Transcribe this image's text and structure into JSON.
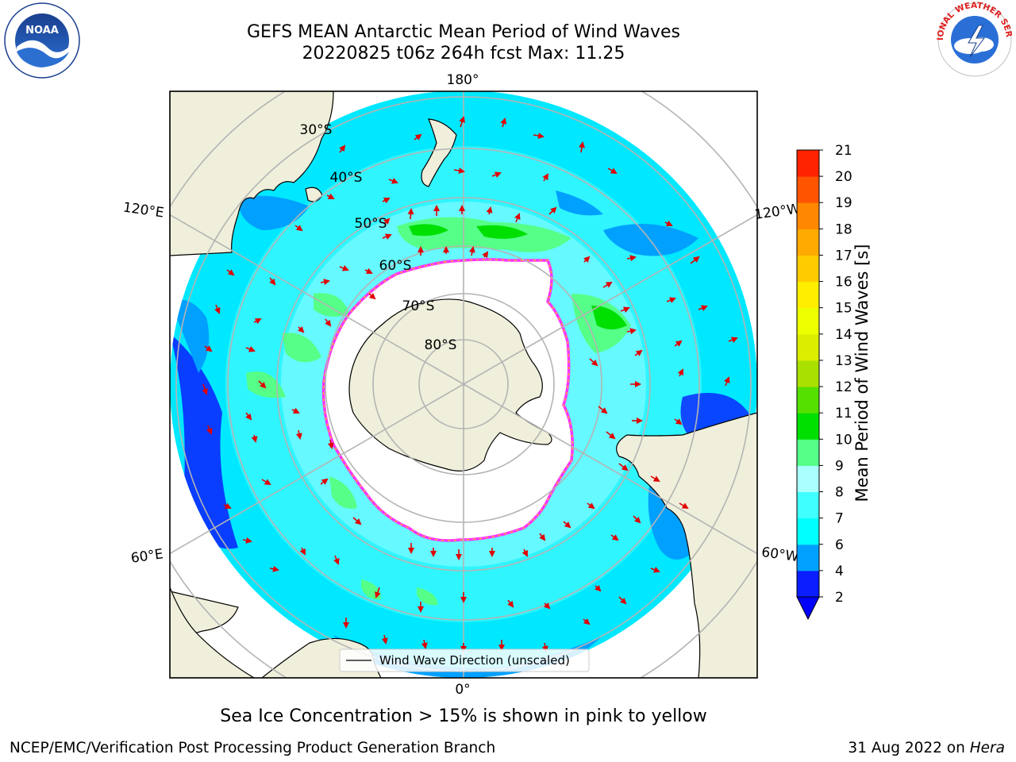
{
  "title": {
    "line1": "GEFS MEAN Antarctic Mean Period of Wind Waves",
    "line2": "20220825 t06z 264h fcst   Max: 11.25"
  },
  "map": {
    "projection": "south-polar-stereographic",
    "longitude_labels": [
      "180°",
      "120°E",
      "120°W",
      "60°E",
      "60°W",
      "0°"
    ],
    "latitude_labels": [
      "30°S",
      "40°S",
      "50°S",
      "60°S",
      "70°S",
      "80°S"
    ],
    "legend": "Wind Wave Direction (unscaled)",
    "colors": {
      "land": "#efefdb",
      "sea_ice_edge": "#ff33ff",
      "arrows": "#e00000",
      "grid": "#b4b4b4"
    }
  },
  "colorbar": {
    "label": "Mean Period of Wind Waves [s]",
    "ticks": [
      "2",
      "4",
      "6",
      "7",
      "8",
      "9",
      "10",
      "11",
      "12",
      "13",
      "14",
      "15",
      "16",
      "17",
      "18",
      "19",
      "20",
      "21"
    ],
    "colors": [
      "#0a1eff",
      "#00a0ff",
      "#00ffff",
      "#40ffff",
      "#aaffff",
      "#55ff88",
      "#00e000",
      "#55e000",
      "#aae000",
      "#dded00",
      "#eeff00",
      "#ffee00",
      "#ffcc00",
      "#ffaa00",
      "#ff8800",
      "#ff5500",
      "#ff2200",
      "#ff0000"
    ],
    "under_color": "#0000ff"
  },
  "subcaption": "Sea Ice Concentration > 15% is shown in pink to yellow",
  "footer": {
    "left": "NCEP/EMC/Verification Post Processing Product Generation Branch",
    "date": "31 Aug 2022 on",
    "machine": "Hera"
  },
  "logos": {
    "noaa_text": "NOAA",
    "nws_text": "NATIONAL WEATHER SERVICE"
  }
}
